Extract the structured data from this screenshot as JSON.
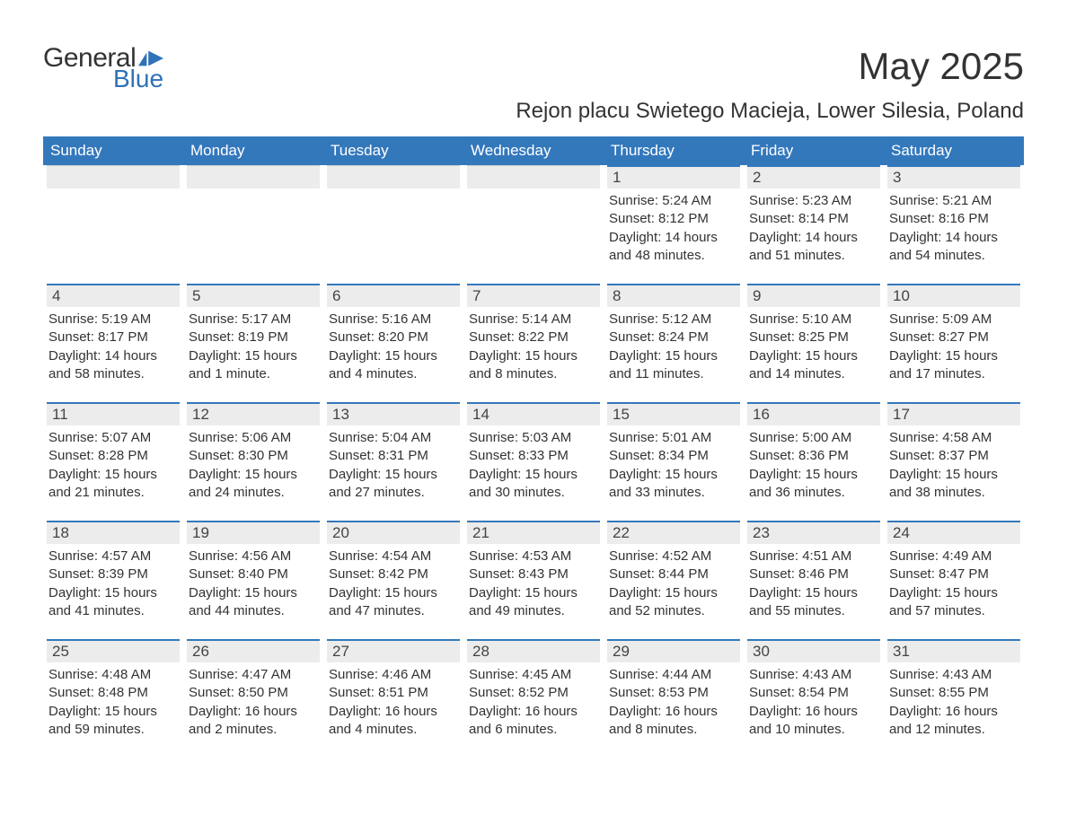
{
  "logo": {
    "text1": "General",
    "text2": "Blue",
    "icon_color": "#2f72b8"
  },
  "title": "May 2025",
  "subtitle": "Rejon placu Swietego Macieja, Lower Silesia, Poland",
  "colors": {
    "header_bg": "#3478bc",
    "header_text": "#ffffff",
    "daybar_bg": "#ececec",
    "daybar_border": "#3478bc",
    "body_text": "#333333",
    "logo_blue": "#2f72b8",
    "background": "#ffffff"
  },
  "typography": {
    "title_fontsize": 42,
    "subtitle_fontsize": 24,
    "weekday_fontsize": 17,
    "daynum_fontsize": 17,
    "info_fontsize": 15
  },
  "weekdays": [
    "Sunday",
    "Monday",
    "Tuesday",
    "Wednesday",
    "Thursday",
    "Friday",
    "Saturday"
  ],
  "weeks": [
    [
      {
        "blank": true
      },
      {
        "blank": true
      },
      {
        "blank": true
      },
      {
        "blank": true
      },
      {
        "day": "1",
        "sunrise": "Sunrise: 5:24 AM",
        "sunset": "Sunset: 8:12 PM",
        "dl1": "Daylight: 14 hours",
        "dl2": "and 48 minutes."
      },
      {
        "day": "2",
        "sunrise": "Sunrise: 5:23 AM",
        "sunset": "Sunset: 8:14 PM",
        "dl1": "Daylight: 14 hours",
        "dl2": "and 51 minutes."
      },
      {
        "day": "3",
        "sunrise": "Sunrise: 5:21 AM",
        "sunset": "Sunset: 8:16 PM",
        "dl1": "Daylight: 14 hours",
        "dl2": "and 54 minutes."
      }
    ],
    [
      {
        "day": "4",
        "sunrise": "Sunrise: 5:19 AM",
        "sunset": "Sunset: 8:17 PM",
        "dl1": "Daylight: 14 hours",
        "dl2": "and 58 minutes."
      },
      {
        "day": "5",
        "sunrise": "Sunrise: 5:17 AM",
        "sunset": "Sunset: 8:19 PM",
        "dl1": "Daylight: 15 hours",
        "dl2": "and 1 minute."
      },
      {
        "day": "6",
        "sunrise": "Sunrise: 5:16 AM",
        "sunset": "Sunset: 8:20 PM",
        "dl1": "Daylight: 15 hours",
        "dl2": "and 4 minutes."
      },
      {
        "day": "7",
        "sunrise": "Sunrise: 5:14 AM",
        "sunset": "Sunset: 8:22 PM",
        "dl1": "Daylight: 15 hours",
        "dl2": "and 8 minutes."
      },
      {
        "day": "8",
        "sunrise": "Sunrise: 5:12 AM",
        "sunset": "Sunset: 8:24 PM",
        "dl1": "Daylight: 15 hours",
        "dl2": "and 11 minutes."
      },
      {
        "day": "9",
        "sunrise": "Sunrise: 5:10 AM",
        "sunset": "Sunset: 8:25 PM",
        "dl1": "Daylight: 15 hours",
        "dl2": "and 14 minutes."
      },
      {
        "day": "10",
        "sunrise": "Sunrise: 5:09 AM",
        "sunset": "Sunset: 8:27 PM",
        "dl1": "Daylight: 15 hours",
        "dl2": "and 17 minutes."
      }
    ],
    [
      {
        "day": "11",
        "sunrise": "Sunrise: 5:07 AM",
        "sunset": "Sunset: 8:28 PM",
        "dl1": "Daylight: 15 hours",
        "dl2": "and 21 minutes."
      },
      {
        "day": "12",
        "sunrise": "Sunrise: 5:06 AM",
        "sunset": "Sunset: 8:30 PM",
        "dl1": "Daylight: 15 hours",
        "dl2": "and 24 minutes."
      },
      {
        "day": "13",
        "sunrise": "Sunrise: 5:04 AM",
        "sunset": "Sunset: 8:31 PM",
        "dl1": "Daylight: 15 hours",
        "dl2": "and 27 minutes."
      },
      {
        "day": "14",
        "sunrise": "Sunrise: 5:03 AM",
        "sunset": "Sunset: 8:33 PM",
        "dl1": "Daylight: 15 hours",
        "dl2": "and 30 minutes."
      },
      {
        "day": "15",
        "sunrise": "Sunrise: 5:01 AM",
        "sunset": "Sunset: 8:34 PM",
        "dl1": "Daylight: 15 hours",
        "dl2": "and 33 minutes."
      },
      {
        "day": "16",
        "sunrise": "Sunrise: 5:00 AM",
        "sunset": "Sunset: 8:36 PM",
        "dl1": "Daylight: 15 hours",
        "dl2": "and 36 minutes."
      },
      {
        "day": "17",
        "sunrise": "Sunrise: 4:58 AM",
        "sunset": "Sunset: 8:37 PM",
        "dl1": "Daylight: 15 hours",
        "dl2": "and 38 minutes."
      }
    ],
    [
      {
        "day": "18",
        "sunrise": "Sunrise: 4:57 AM",
        "sunset": "Sunset: 8:39 PM",
        "dl1": "Daylight: 15 hours",
        "dl2": "and 41 minutes."
      },
      {
        "day": "19",
        "sunrise": "Sunrise: 4:56 AM",
        "sunset": "Sunset: 8:40 PM",
        "dl1": "Daylight: 15 hours",
        "dl2": "and 44 minutes."
      },
      {
        "day": "20",
        "sunrise": "Sunrise: 4:54 AM",
        "sunset": "Sunset: 8:42 PM",
        "dl1": "Daylight: 15 hours",
        "dl2": "and 47 minutes."
      },
      {
        "day": "21",
        "sunrise": "Sunrise: 4:53 AM",
        "sunset": "Sunset: 8:43 PM",
        "dl1": "Daylight: 15 hours",
        "dl2": "and 49 minutes."
      },
      {
        "day": "22",
        "sunrise": "Sunrise: 4:52 AM",
        "sunset": "Sunset: 8:44 PM",
        "dl1": "Daylight: 15 hours",
        "dl2": "and 52 minutes."
      },
      {
        "day": "23",
        "sunrise": "Sunrise: 4:51 AM",
        "sunset": "Sunset: 8:46 PM",
        "dl1": "Daylight: 15 hours",
        "dl2": "and 55 minutes."
      },
      {
        "day": "24",
        "sunrise": "Sunrise: 4:49 AM",
        "sunset": "Sunset: 8:47 PM",
        "dl1": "Daylight: 15 hours",
        "dl2": "and 57 minutes."
      }
    ],
    [
      {
        "day": "25",
        "sunrise": "Sunrise: 4:48 AM",
        "sunset": "Sunset: 8:48 PM",
        "dl1": "Daylight: 15 hours",
        "dl2": "and 59 minutes."
      },
      {
        "day": "26",
        "sunrise": "Sunrise: 4:47 AM",
        "sunset": "Sunset: 8:50 PM",
        "dl1": "Daylight: 16 hours",
        "dl2": "and 2 minutes."
      },
      {
        "day": "27",
        "sunrise": "Sunrise: 4:46 AM",
        "sunset": "Sunset: 8:51 PM",
        "dl1": "Daylight: 16 hours",
        "dl2": "and 4 minutes."
      },
      {
        "day": "28",
        "sunrise": "Sunrise: 4:45 AM",
        "sunset": "Sunset: 8:52 PM",
        "dl1": "Daylight: 16 hours",
        "dl2": "and 6 minutes."
      },
      {
        "day": "29",
        "sunrise": "Sunrise: 4:44 AM",
        "sunset": "Sunset: 8:53 PM",
        "dl1": "Daylight: 16 hours",
        "dl2": "and 8 minutes."
      },
      {
        "day": "30",
        "sunrise": "Sunrise: 4:43 AM",
        "sunset": "Sunset: 8:54 PM",
        "dl1": "Daylight: 16 hours",
        "dl2": "and 10 minutes."
      },
      {
        "day": "31",
        "sunrise": "Sunrise: 4:43 AM",
        "sunset": "Sunset: 8:55 PM",
        "dl1": "Daylight: 16 hours",
        "dl2": "and 12 minutes."
      }
    ]
  ]
}
